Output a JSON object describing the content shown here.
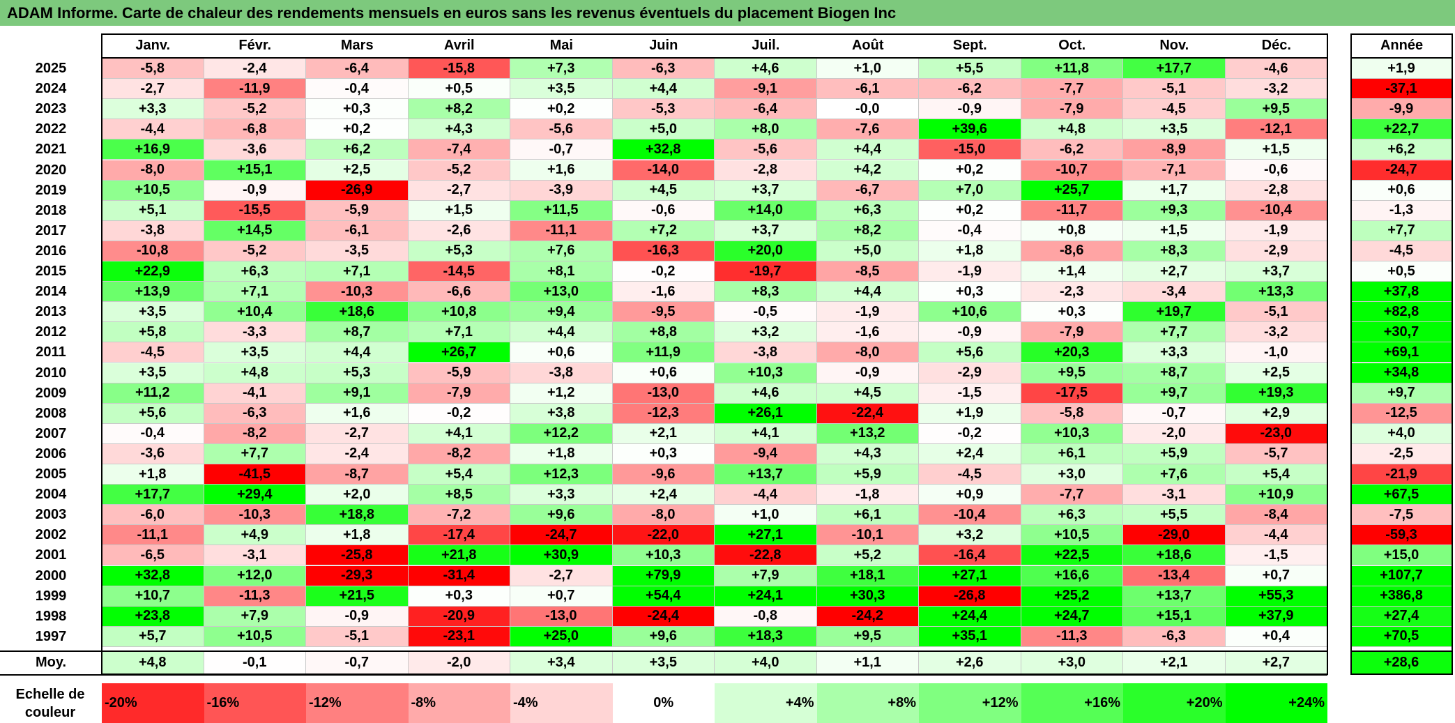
{
  "title": "ADAM Informe. Carte de chaleur des rendements mensuels en euros sans les revenus éventuels du placement Biogen Inc",
  "chart_data": {
    "type": "heatmap",
    "title": "ADAM Informe. Carte de chaleur des rendements mensuels en euros sans les revenus éventuels du placement Biogen Inc",
    "months": [
      "Janv.",
      "Févr.",
      "Mars",
      "Avril",
      "Mai",
      "Juin",
      "Juil.",
      "Août",
      "Sept.",
      "Oct.",
      "Nov.",
      "Déc."
    ],
    "year_header": "Année",
    "avg_label": "Moy.",
    "rows": [
      {
        "year": "2025",
        "values": [
          "-5,8",
          "-2,4",
          "-6,4",
          "-15,8",
          "+7,3",
          "-6,3",
          "+4,6",
          "+1,0",
          "+5,5",
          "+11,8",
          "+17,7",
          "-4,6"
        ],
        "annual": "+1,9"
      },
      {
        "year": "2024",
        "values": [
          "-2,7",
          "-11,9",
          "-0,4",
          "+0,5",
          "+3,5",
          "+4,4",
          "-9,1",
          "-6,1",
          "-6,2",
          "-7,7",
          "-5,1",
          "-3,2"
        ],
        "annual": "-37,1"
      },
      {
        "year": "2023",
        "values": [
          "+3,3",
          "-5,2",
          "+0,3",
          "+8,2",
          "+0,2",
          "-5,3",
          "-6,4",
          "-0,0",
          "-0,9",
          "-7,9",
          "-4,5",
          "+9,5"
        ],
        "annual": "-9,9"
      },
      {
        "year": "2022",
        "values": [
          "-4,4",
          "-6,8",
          "+0,2",
          "+4,3",
          "-5,6",
          "+5,0",
          "+8,0",
          "-7,6",
          "+39,6",
          "+4,8",
          "+3,5",
          "-12,1"
        ],
        "annual": "+22,7"
      },
      {
        "year": "2021",
        "values": [
          "+16,9",
          "-3,6",
          "+6,2",
          "-7,4",
          "-0,7",
          "+32,8",
          "-5,6",
          "+4,4",
          "-15,0",
          "-6,2",
          "-8,9",
          "+1,5"
        ],
        "annual": "+6,2"
      },
      {
        "year": "2020",
        "values": [
          "-8,0",
          "+15,1",
          "+2,5",
          "-5,2",
          "+1,6",
          "-14,0",
          "-2,8",
          "+4,2",
          "+0,2",
          "-10,7",
          "-7,1",
          "-0,6"
        ],
        "annual": "-24,7"
      },
      {
        "year": "2019",
        "values": [
          "+10,5",
          "-0,9",
          "-26,9",
          "-2,7",
          "-3,9",
          "+4,5",
          "+3,7",
          "-6,7",
          "+7,0",
          "+25,7",
          "+1,7",
          "-2,8"
        ],
        "annual": "+0,6"
      },
      {
        "year": "2018",
        "values": [
          "+5,1",
          "-15,5",
          "-5,9",
          "+1,5",
          "+11,5",
          "-0,6",
          "+14,0",
          "+6,3",
          "+0,2",
          "-11,7",
          "+9,3",
          "-10,4"
        ],
        "annual": "-1,3"
      },
      {
        "year": "2017",
        "values": [
          "-3,8",
          "+14,5",
          "-6,1",
          "-2,6",
          "-11,1",
          "+7,2",
          "+3,7",
          "+8,2",
          "-0,4",
          "+0,8",
          "+1,5",
          "-1,9"
        ],
        "annual": "+7,7"
      },
      {
        "year": "2016",
        "values": [
          "-10,8",
          "-5,2",
          "-3,5",
          "+5,3",
          "+7,6",
          "-16,3",
          "+20,0",
          "+5,0",
          "+1,8",
          "-8,6",
          "+8,3",
          "-2,9"
        ],
        "annual": "-4,5"
      },
      {
        "year": "2015",
        "values": [
          "+22,9",
          "+6,3",
          "+7,1",
          "-14,5",
          "+8,1",
          "-0,2",
          "-19,7",
          "-8,5",
          "-1,9",
          "+1,4",
          "+2,7",
          "+3,7"
        ],
        "annual": "+0,5"
      },
      {
        "year": "2014",
        "values": [
          "+13,9",
          "+7,1",
          "-10,3",
          "-6,6",
          "+13,0",
          "-1,6",
          "+8,3",
          "+4,4",
          "+0,3",
          "-2,3",
          "-3,4",
          "+13,3"
        ],
        "annual": "+37,8"
      },
      {
        "year": "2013",
        "values": [
          "+3,5",
          "+10,4",
          "+18,6",
          "+10,8",
          "+9,4",
          "-9,5",
          "-0,5",
          "-1,9",
          "+10,6",
          "+0,3",
          "+19,7",
          "-5,1"
        ],
        "annual": "+82,8"
      },
      {
        "year": "2012",
        "values": [
          "+5,8",
          "-3,3",
          "+8,7",
          "+7,1",
          "+4,4",
          "+8,8",
          "+3,2",
          "-1,6",
          "-0,9",
          "-7,9",
          "+7,7",
          "-3,2"
        ],
        "annual": "+30,7"
      },
      {
        "year": "2011",
        "values": [
          "-4,5",
          "+3,5",
          "+4,4",
          "+26,7",
          "+0,6",
          "+11,9",
          "-3,8",
          "-8,0",
          "+5,6",
          "+20,3",
          "+3,3",
          "-1,0"
        ],
        "annual": "+69,1"
      },
      {
        "year": "2010",
        "values": [
          "+3,5",
          "+4,8",
          "+5,3",
          "-5,9",
          "-3,8",
          "+0,6",
          "+10,3",
          "-0,9",
          "-2,9",
          "+9,5",
          "+8,7",
          "+2,5"
        ],
        "annual": "+34,8"
      },
      {
        "year": "2009",
        "values": [
          "+11,2",
          "-4,1",
          "+9,1",
          "-7,9",
          "+1,2",
          "-13,0",
          "+4,6",
          "+4,5",
          "-1,5",
          "-17,5",
          "+9,7",
          "+19,3"
        ],
        "annual": "+9,7"
      },
      {
        "year": "2008",
        "values": [
          "+5,6",
          "-6,3",
          "+1,6",
          "-0,2",
          "+3,8",
          "-12,3",
          "+26,1",
          "-22,4",
          "+1,9",
          "-5,8",
          "-0,7",
          "+2,9"
        ],
        "annual": "-12,5"
      },
      {
        "year": "2007",
        "values": [
          "-0,4",
          "-8,2",
          "-2,7",
          "+4,1",
          "+12,2",
          "+2,1",
          "+4,1",
          "+13,2",
          "-0,2",
          "+10,3",
          "-2,0",
          "-23,0"
        ],
        "annual": "+4,0"
      },
      {
        "year": "2006",
        "values": [
          "-3,6",
          "+7,7",
          "-2,4",
          "-8,2",
          "+1,8",
          "+0,3",
          "-9,4",
          "+4,3",
          "+2,4",
          "+6,1",
          "+5,9",
          "-5,7"
        ],
        "annual": "-2,5"
      },
      {
        "year": "2005",
        "values": [
          "+1,8",
          "-41,5",
          "-8,7",
          "+5,4",
          "+12,3",
          "-9,6",
          "+13,7",
          "+5,9",
          "-4,5",
          "+3,0",
          "+7,6",
          "+5,4"
        ],
        "annual": "-21,9"
      },
      {
        "year": "2004",
        "values": [
          "+17,7",
          "+29,4",
          "+2,0",
          "+8,5",
          "+3,3",
          "+2,4",
          "-4,4",
          "-1,8",
          "+0,9",
          "-7,7",
          "-3,1",
          "+10,9"
        ],
        "annual": "+67,5"
      },
      {
        "year": "2003",
        "values": [
          "-6,0",
          "-10,3",
          "+18,8",
          "-7,2",
          "+9,6",
          "-8,0",
          "+1,0",
          "+6,1",
          "-10,4",
          "+6,3",
          "+5,5",
          "-8,4"
        ],
        "annual": "-7,5"
      },
      {
        "year": "2002",
        "values": [
          "-11,1",
          "+4,9",
          "+1,8",
          "-17,4",
          "-24,7",
          "-22,0",
          "+27,1",
          "-10,1",
          "+3,2",
          "+10,5",
          "-29,0",
          "-4,4"
        ],
        "annual": "-59,3"
      },
      {
        "year": "2001",
        "values": [
          "-6,5",
          "-3,1",
          "-25,8",
          "+21,8",
          "+30,9",
          "+10,3",
          "-22,8",
          "+5,2",
          "-16,4",
          "+22,5",
          "+18,6",
          "-1,5"
        ],
        "annual": "+15,0"
      },
      {
        "year": "2000",
        "values": [
          "+32,8",
          "+12,0",
          "-29,3",
          "-31,4",
          "-2,7",
          "+79,9",
          "+7,9",
          "+18,1",
          "+27,1",
          "+16,6",
          "-13,4",
          "+0,7"
        ],
        "annual": "+107,7"
      },
      {
        "year": "1999",
        "values": [
          "+10,7",
          "-11,3",
          "+21,5",
          "+0,3",
          "+0,7",
          "+54,4",
          "+24,1",
          "+30,3",
          "-26,8",
          "+25,2",
          "+13,7",
          "+55,3"
        ],
        "annual": "+386,8"
      },
      {
        "year": "1998",
        "values": [
          "+23,8",
          "+7,9",
          "-0,9",
          "-20,9",
          "-13,0",
          "-24,4",
          "-0,8",
          "-24,2",
          "+24,4",
          "+24,7",
          "+15,1",
          "+37,9"
        ],
        "annual": "+27,4"
      },
      {
        "year": "1997",
        "values": [
          "+5,7",
          "+10,5",
          "-5,1",
          "-23,1",
          "+25,0",
          "+9,6",
          "+18,3",
          "+9,5",
          "+35,1",
          "-11,3",
          "-6,3",
          "+0,4"
        ],
        "annual": "+70,5"
      }
    ],
    "averages": [
      "+4,8",
      "-0,1",
      "-0,7",
      "-2,0",
      "+3,4",
      "+3,5",
      "+4,0",
      "+1,1",
      "+2,6",
      "+3,0",
      "+2,1",
      "+2,7"
    ],
    "average_annual": "+28,6",
    "color_scale": {
      "label": "Echelle de couleur",
      "steps": [
        "-20%",
        "-16%",
        "-12%",
        "-8%",
        "-4%",
        "0%",
        "+4%",
        "+8%",
        "+12%",
        "+16%",
        "+20%",
        "+24%"
      ],
      "negative_color": "#ff0000",
      "positive_color": "#00ff00",
      "neutral_color": "#ffffff",
      "monthly_saturation": 24,
      "annual_saturation": 30
    }
  }
}
